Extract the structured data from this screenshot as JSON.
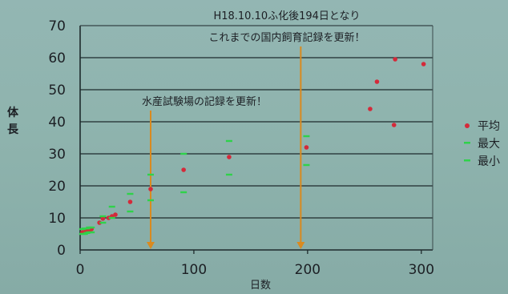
{
  "chart_data": {
    "type": "scatter",
    "xlabel": "日数",
    "ylabel_chars": [
      "体",
      "長"
    ],
    "xlim": [
      0,
      310
    ],
    "ylim": [
      0,
      70
    ],
    "x_ticks": [
      0,
      100,
      200,
      300
    ],
    "y_ticks": [
      0,
      10,
      20,
      30,
      40,
      50,
      60,
      70
    ],
    "grid": "horizontal",
    "legend_position": "right",
    "legend": [
      "平均",
      "最大",
      "最小"
    ],
    "colors": {
      "average": "#d42a3a",
      "range": "#2fd24a",
      "arrow": "#d98a1f"
    },
    "series": [
      {
        "name": "平均",
        "marker": "dot",
        "x": [
          2,
          4,
          6,
          8,
          10,
          17,
          20,
          25,
          28,
          31,
          44,
          62,
          91,
          131,
          199,
          255,
          261,
          276,
          277,
          302
        ],
        "y": [
          5.5,
          5.6,
          6,
          6,
          6.5,
          8.5,
          9.8,
          10,
          10.5,
          11,
          15,
          19,
          25,
          29,
          32,
          44,
          52.5,
          39,
          59.5,
          58
        ]
      },
      {
        "name": "最大",
        "marker": "dash",
        "x": [
          2,
          4,
          6,
          8,
          10,
          20,
          28,
          44,
          62,
          91,
          131,
          199
        ],
        "y": [
          6.5,
          6.7,
          6.7,
          7,
          7,
          10.5,
          13.5,
          17.5,
          23.5,
          30,
          34,
          35.5
        ]
      },
      {
        "name": "最小",
        "marker": "dash",
        "x": [
          2,
          4,
          6,
          8,
          10,
          20,
          28,
          44,
          62,
          91,
          131,
          199
        ],
        "y": [
          5,
          5,
          5.3,
          5.5,
          5.5,
          8.5,
          10,
          12,
          15.5,
          18,
          23.5,
          26.5
        ]
      }
    ],
    "annotations": [
      "H18.10.10ふ化後194日となり",
      "これまでの国内飼育記録を更新！",
      "水産試験場の記録を更新！"
    ],
    "arrows_at_x": [
      62,
      194
    ]
  }
}
